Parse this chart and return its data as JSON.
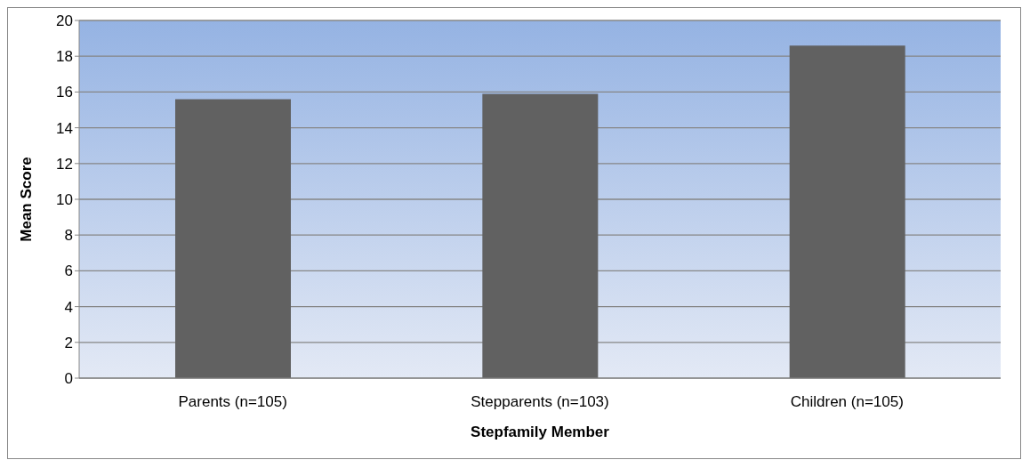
{
  "chart_data": {
    "type": "bar",
    "xlabel": "Stepfamily Member",
    "ylabel": "Mean Score",
    "categories": [
      "Parents (n=105)",
      "Stepparents (n=103)",
      "Children (n=105)"
    ],
    "values": [
      15.6,
      15.9,
      18.6
    ],
    "color": "#616161",
    "ylim": [
      0,
      20
    ],
    "yticks": [
      0,
      2,
      4,
      6,
      8,
      10,
      12,
      14,
      16,
      18,
      20
    ],
    "grid": "y"
  }
}
